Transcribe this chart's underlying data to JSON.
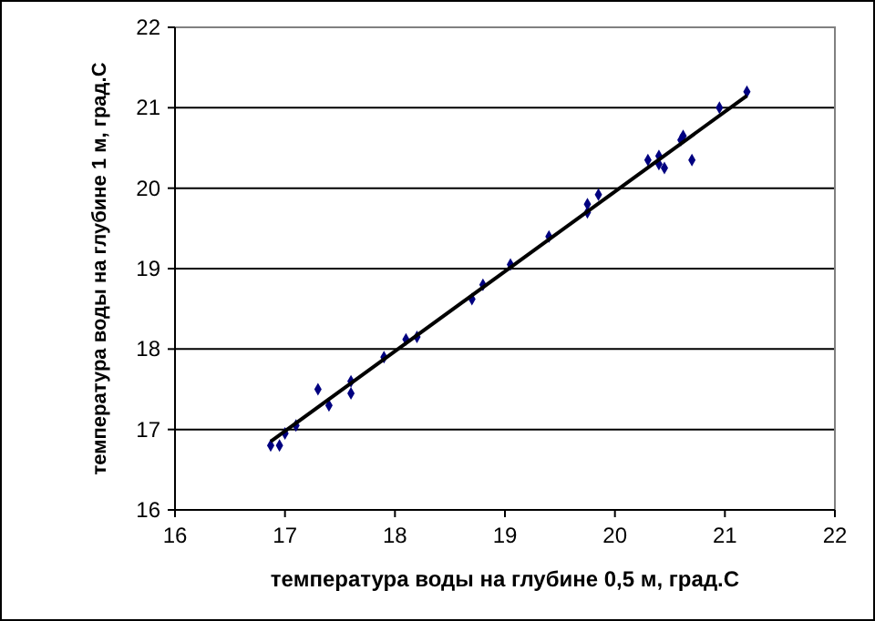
{
  "chart_data": {
    "type": "scatter",
    "xlabel": "температура воды на глубине 0,5 м, град.С",
    "ylabel": "температура воды на глубине 1 м, град.С",
    "xlim": [
      16,
      22
    ],
    "ylim": [
      16,
      22
    ],
    "xticks": [
      16,
      17,
      18,
      19,
      20,
      21,
      22
    ],
    "yticks": [
      16,
      17,
      18,
      19,
      20,
      21,
      22
    ],
    "grid": "y",
    "series": [
      {
        "marker": "diamond",
        "color": "#000080",
        "x": [
          16.87,
          16.95,
          17.0,
          17.1,
          17.3,
          17.4,
          17.6,
          17.6,
          17.9,
          18.1,
          18.2,
          18.7,
          18.8,
          19.05,
          19.4,
          19.75,
          19.75,
          19.85,
          20.3,
          20.4,
          20.45,
          20.4,
          20.6,
          20.62,
          20.7,
          20.95,
          21.2
        ],
        "values": [
          16.8,
          16.8,
          16.95,
          17.05,
          17.5,
          17.3,
          17.6,
          17.45,
          17.9,
          18.12,
          18.15,
          18.62,
          18.8,
          19.05,
          19.4,
          19.7,
          19.8,
          19.92,
          20.35,
          20.3,
          20.25,
          20.4,
          20.6,
          20.65,
          20.35,
          21.0,
          21.2
        ]
      },
      {
        "type": "line",
        "color": "#000000",
        "x": [
          16.87,
          21.2
        ],
        "values": [
          16.85,
          21.15
        ]
      }
    ]
  }
}
